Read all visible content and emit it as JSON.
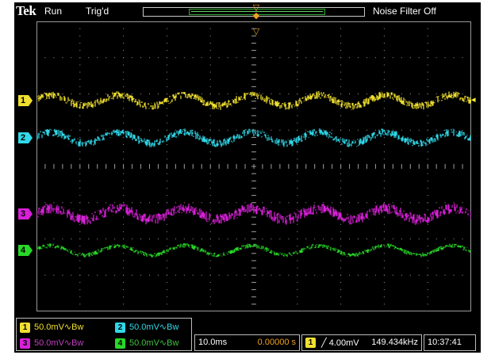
{
  "header": {
    "brand": "Tek",
    "acq_state": "Run",
    "trigger_state": "Trig'd",
    "noise_filter": "Noise Filter Off"
  },
  "colors": {
    "ch1": "#f0e030",
    "ch2": "#30d8e8",
    "ch3": "#d820d8",
    "ch4": "#28d828",
    "trigger": "#f0a020",
    "background": "#000000",
    "graticule": "#9a9a9a"
  },
  "channels": [
    {
      "id": "1",
      "scale": "50.0mV",
      "coupling": "∿Bw"
    },
    {
      "id": "2",
      "scale": "50.0mV",
      "coupling": "∿Bw"
    },
    {
      "id": "3",
      "scale": "50.0mV",
      "coupling": "∿Bw"
    },
    {
      "id": "4",
      "scale": "50.0mV",
      "coupling": "∿Bw"
    }
  ],
  "timebase": {
    "scale": "10.0ms",
    "position": "0.00000 s"
  },
  "trigger": {
    "source": "1",
    "slope_icon": "rising-edge-icon",
    "slope_symbol": "⌠",
    "level": "4.00mV",
    "frequency": "149.434kHz"
  },
  "clock": "10:37:41",
  "icons": {
    "trigger_position": "trigger-position-icon",
    "trigger_level": "trigger-level-arrow-icon"
  }
}
